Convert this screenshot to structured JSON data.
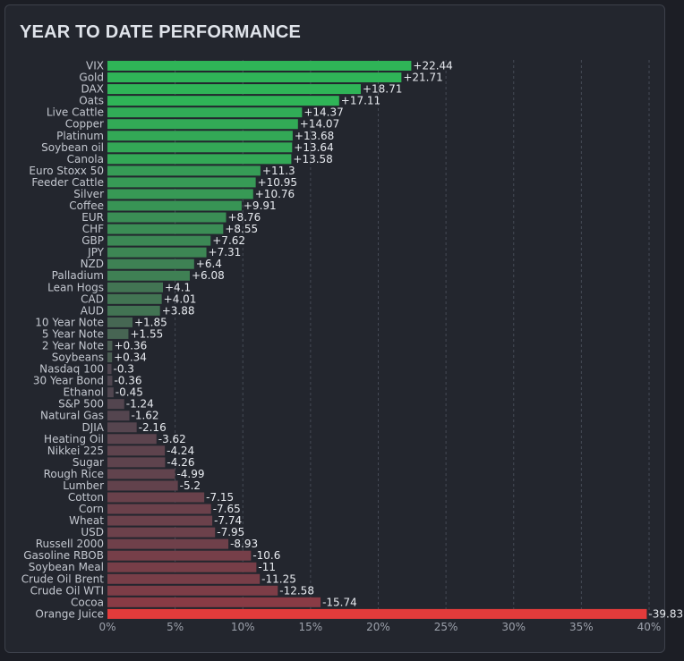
{
  "title": "YEAR TO DATE PERFORMANCE",
  "chart_data": {
    "type": "bar",
    "orientation": "horizontal",
    "title": "YEAR TO DATE PERFORMANCE",
    "xlabel": "",
    "ylabel": "",
    "xlim": [
      0,
      40
    ],
    "x_ticks": [
      "0%",
      "5%",
      "10%",
      "15%",
      "20%",
      "25%",
      "30%",
      "35%",
      "40%"
    ],
    "bar_length": "absolute value",
    "grid": "vertical dashed",
    "categories": [
      "VIX",
      "Gold",
      "DAX",
      "Oats",
      "Live Cattle",
      "Copper",
      "Platinum",
      "Soybean oil",
      "Canola",
      "Euro Stoxx 50",
      "Feeder Cattle",
      "Silver",
      "Coffee",
      "EUR",
      "CHF",
      "GBP",
      "JPY",
      "NZD",
      "Palladium",
      "Lean Hogs",
      "CAD",
      "AUD",
      "10 Year Note",
      "5 Year Note",
      "2 Year Note",
      "Soybeans",
      "Nasdaq 100",
      "30 Year Bond",
      "Ethanol",
      "S&P 500",
      "Natural Gas",
      "DJIA",
      "Heating Oil",
      "Nikkei 225",
      "Sugar",
      "Rough Rice",
      "Lumber",
      "Cotton",
      "Corn",
      "Wheat",
      "USD",
      "Russell 2000",
      "Gasoline RBOB",
      "Soybean Meal",
      "Crude Oil Brent",
      "Crude Oil WTI",
      "Cocoa",
      "Orange Juice"
    ],
    "values": [
      22.44,
      21.71,
      18.71,
      17.11,
      14.37,
      14.07,
      13.68,
      13.64,
      13.58,
      11.3,
      10.95,
      10.76,
      9.91,
      8.76,
      8.55,
      7.62,
      7.31,
      6.4,
      6.08,
      4.1,
      4.01,
      3.88,
      1.85,
      1.55,
      0.36,
      0.34,
      -0.3,
      -0.36,
      -0.45,
      -1.24,
      -1.62,
      -2.16,
      -3.62,
      -4.24,
      -4.26,
      -4.99,
      -5.2,
      -7.15,
      -7.65,
      -7.74,
      -7.95,
      -8.93,
      -10.6,
      -11,
      -11.25,
      -12.58,
      -15.74,
      -39.83
    ],
    "value_labels": [
      "+22.44",
      "+21.71",
      "+18.71",
      "+17.11",
      "+14.37",
      "+14.07",
      "+13.68",
      "+13.64",
      "+13.58",
      "+11.3",
      "+10.95",
      "+10.76",
      "+9.91",
      "+8.76",
      "+8.55",
      "+7.62",
      "+7.31",
      "+6.4",
      "+6.08",
      "+4.1",
      "+4.01",
      "+3.88",
      "+1.85",
      "+1.55",
      "+0.36",
      "+0.34",
      "-0.3",
      "-0.36",
      "-0.45",
      "-1.24",
      "-1.62",
      "-2.16",
      "-3.62",
      "-4.24",
      "-4.26",
      "-4.99",
      "-5.2",
      "-7.15",
      "-7.65",
      "-7.74",
      "-7.95",
      "-8.93",
      "-10.6",
      "-11",
      "-11.25",
      "-12.58",
      "-15.74",
      "-39.83"
    ],
    "colors": {
      "strong_positive": "#2fb457",
      "weak_positive": "#4a5a52",
      "weak_negative": "#4e4650",
      "strong_negative": "#8a3b45",
      "extreme_negative": "#e33b3b",
      "grid": "#454a55"
    }
  }
}
